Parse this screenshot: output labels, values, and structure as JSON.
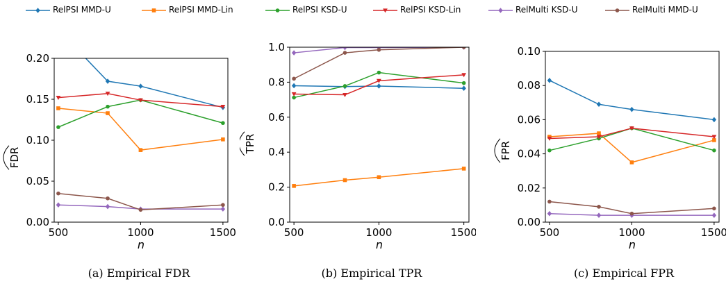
{
  "legend": [
    {
      "name": "RelPSI MMD-U",
      "color": "#1f77b4",
      "marker": "diamond"
    },
    {
      "name": "RelPSI MMD-Lin",
      "color": "#ff7f0e",
      "marker": "square"
    },
    {
      "name": "RelPSI KSD-U",
      "color": "#2ca02c",
      "marker": "circle"
    },
    {
      "name": "RelPSI KSD-Lin",
      "color": "#d62728",
      "marker": "triangle-down"
    },
    {
      "name": "RelMulti KSD-U",
      "color": "#9467bd",
      "marker": "diamond"
    },
    {
      "name": "RelMulti MMD-U",
      "color": "#8c564b",
      "marker": "circle"
    }
  ],
  "chart_data": [
    {
      "type": "line",
      "caption": "(a) Empirical FDR",
      "xlabel": "n",
      "ylabel": "FDR",
      "ylabel_hat": true,
      "xlim": [
        475,
        1530
      ],
      "ylim": [
        0,
        0.2
      ],
      "xticks": [
        500,
        1000,
        1500
      ],
      "yticks": [
        0.0,
        0.05,
        0.1,
        0.15,
        0.2
      ],
      "ytick_labels": [
        "0.00",
        "0.05",
        "0.10",
        "0.15",
        "0.20"
      ],
      "x": [
        500,
        800,
        1000,
        1500
      ],
      "series": [
        {
          "name": "RelPSI MMD-U",
          "values": [
            0.235,
            0.172,
            0.166,
            0.14
          ]
        },
        {
          "name": "RelPSI MMD-Lin",
          "values": [
            0.139,
            0.133,
            0.088,
            0.101
          ]
        },
        {
          "name": "RelPSI KSD-U",
          "values": [
            0.116,
            0.141,
            0.149,
            0.121
          ]
        },
        {
          "name": "RelPSI KSD-Lin",
          "values": [
            0.152,
            0.157,
            0.149,
            0.141
          ]
        },
        {
          "name": "RelMulti KSD-U",
          "values": [
            0.021,
            0.019,
            0.016,
            0.016
          ]
        },
        {
          "name": "RelMulti MMD-U",
          "values": [
            0.035,
            0.029,
            0.015,
            0.021
          ]
        }
      ]
    },
    {
      "type": "line",
      "caption": "(b) Empirical TPR",
      "xlabel": "n",
      "ylabel": "TPR",
      "ylabel_hat": true,
      "xlim": [
        475,
        1530
      ],
      "ylim": [
        0,
        1.0
      ],
      "xticks": [
        500,
        1000,
        1500
      ],
      "yticks": [
        0.0,
        0.2,
        0.4,
        0.6,
        0.8,
        1.0
      ],
      "ytick_labels": [
        "0.0",
        "0.2",
        "0.4",
        "0.6",
        "0.8",
        "1.0"
      ],
      "x": [
        500,
        800,
        1000,
        1500
      ],
      "series": [
        {
          "name": "RelPSI MMD-U",
          "values": [
            0.78,
            0.775,
            0.778,
            0.765
          ]
        },
        {
          "name": "RelPSI MMD-Lin",
          "values": [
            0.207,
            0.24,
            0.257,
            0.306
          ]
        },
        {
          "name": "RelPSI KSD-U",
          "values": [
            0.712,
            0.778,
            0.855,
            0.795
          ]
        },
        {
          "name": "RelPSI KSD-Lin",
          "values": [
            0.732,
            0.728,
            0.808,
            0.842
          ]
        },
        {
          "name": "RelMulti KSD-U",
          "values": [
            0.968,
            0.998,
            0.998,
            1.0
          ]
        },
        {
          "name": "RelMulti MMD-U",
          "values": [
            0.82,
            0.968,
            0.985,
            1.0
          ]
        }
      ]
    },
    {
      "type": "line",
      "caption": "(c) Empirical FPR",
      "xlabel": "n",
      "ylabel": "FPR",
      "ylabel_hat": true,
      "xlim": [
        475,
        1530
      ],
      "ylim": [
        0,
        0.1
      ],
      "xticks": [
        500,
        1000,
        1500
      ],
      "yticks": [
        0.0,
        0.02,
        0.04,
        0.06,
        0.08,
        0.1
      ],
      "ytick_labels": [
        "0.00",
        "0.02",
        "0.04",
        "0.06",
        "0.08",
        "0.10"
      ],
      "x": [
        500,
        800,
        1000,
        1500
      ],
      "series": [
        {
          "name": "RelPSI MMD-U",
          "values": [
            0.083,
            0.069,
            0.066,
            0.06
          ]
        },
        {
          "name": "RelPSI MMD-Lin",
          "values": [
            0.05,
            0.052,
            0.035,
            0.048
          ]
        },
        {
          "name": "RelPSI KSD-U",
          "values": [
            0.042,
            0.049,
            0.055,
            0.042
          ]
        },
        {
          "name": "RelPSI KSD-Lin",
          "values": [
            0.049,
            0.05,
            0.055,
            0.05
          ]
        },
        {
          "name": "RelMulti KSD-U",
          "values": [
            0.005,
            0.004,
            0.004,
            0.004
          ]
        },
        {
          "name": "RelMulti MMD-U",
          "values": [
            0.012,
            0.009,
            0.005,
            0.008
          ]
        }
      ]
    }
  ]
}
